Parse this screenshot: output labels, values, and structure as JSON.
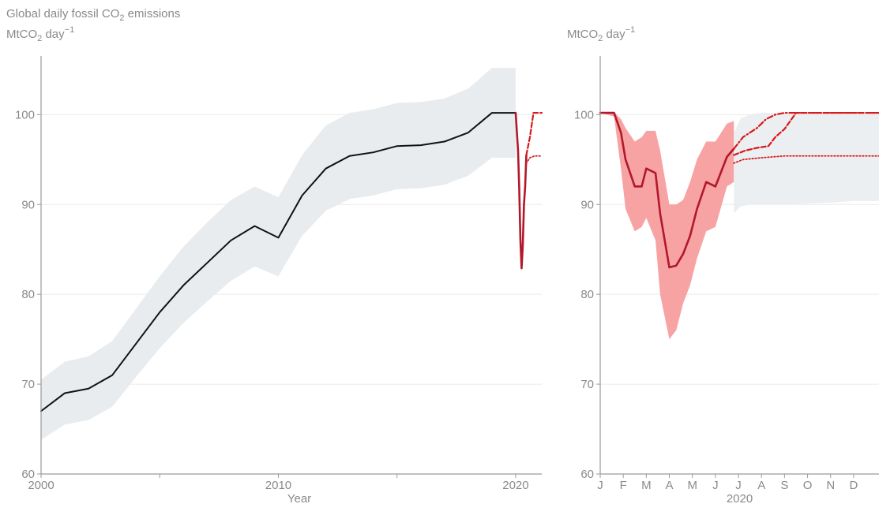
{
  "figure_title": {
    "main": "Global daily fossil CO",
    "sub": "2",
    "tail": " emissions"
  },
  "unit_label": {
    "a": "MtCO",
    "sub": "2",
    "b": " day",
    "sup": "−1"
  },
  "colors": {
    "grid": "#ebebeb",
    "axis": "#9a9a9a",
    "text": "#8a8a8a",
    "black_line": "#111111",
    "uncertainty_grey": "#e9ecee",
    "red_line": "#b2182b",
    "red_band": "#f7a3a3",
    "red_dash": "#d7191c"
  },
  "chart_data": [
    {
      "type": "line",
      "ylim": [
        60,
        106
      ],
      "xlim": [
        2000,
        2021.1
      ],
      "yticks": [
        60,
        70,
        80,
        90,
        100
      ],
      "xticks": [
        2000,
        2005,
        2010,
        2015,
        2020
      ],
      "xtick_labels": [
        "2000",
        "",
        "2010",
        "",
        "2020"
      ],
      "xlabel": "Year",
      "grid": true,
      "series": [
        {
          "style": "line",
          "x": [
            2000,
            2001,
            2002,
            2003,
            2004,
            2005,
            2006,
            2007,
            2008,
            2009,
            2010,
            2011,
            2012,
            2013,
            2014,
            2015,
            2016,
            2017,
            2018,
            2019,
            2020
          ],
          "y": [
            67.0,
            69.0,
            69.5,
            71.0,
            74.5,
            78.0,
            81.0,
            83.5,
            86.0,
            87.6,
            86.3,
            91.0,
            94.0,
            95.4,
            95.8,
            96.5,
            96.6,
            97.0,
            98.0,
            100.2,
            100.2
          ],
          "band_low": [
            63.8,
            65.5,
            66.0,
            67.5,
            70.8,
            74.0,
            76.8,
            79.2,
            81.5,
            83.1,
            82.0,
            86.5,
            89.3,
            90.6,
            91.0,
            91.7,
            91.8,
            92.2,
            93.2,
            95.2,
            95.2
          ],
          "band_high": [
            70.5,
            72.5,
            73.1,
            74.8,
            78.4,
            82.0,
            85.3,
            88.0,
            90.5,
            92.0,
            90.8,
            95.5,
            98.8,
            100.2,
            100.6,
            101.3,
            101.4,
            101.8,
            102.9,
            105.2,
            105.2
          ]
        },
        {
          "style": "red-line",
          "x": [
            2020.0,
            2020.1,
            2020.15,
            2020.2,
            2020.25,
            2020.3,
            2020.35,
            2020.4,
            2020.45
          ],
          "y": [
            100.2,
            96.0,
            91.8,
            86.0,
            82.9,
            85.5,
            90.0,
            92.0,
            95.5
          ]
        },
        {
          "style": "red-dash",
          "x": [
            2020.45,
            2020.6,
            2020.75,
            2020.9,
            2021.1
          ],
          "y": [
            95.5,
            97.5,
            100.2,
            100.2,
            100.2
          ]
        },
        {
          "style": "red-dot",
          "x": [
            2020.45,
            2020.6,
            2020.8,
            2021.1
          ],
          "y": [
            94.6,
            95.2,
            95.4,
            95.4
          ]
        }
      ]
    },
    {
      "type": "line",
      "ylim": [
        60,
        106
      ],
      "xlim": [
        0,
        12.1
      ],
      "yticks": [
        60,
        70,
        80,
        90,
        100
      ],
      "xtick_labels": [
        "J",
        "F",
        "M",
        "A",
        "M",
        "J",
        "J",
        "A",
        "S",
        "O",
        "N",
        "D"
      ],
      "xlabel": "2020",
      "grid": true,
      "series": [
        {
          "style": "red-line",
          "x": [
            0,
            0.6,
            0.9,
            1.1,
            1.5,
            1.8,
            2.0,
            2.4,
            2.6,
            3.0,
            3.3,
            3.6,
            3.9,
            4.2,
            4.6,
            5.0,
            5.5,
            5.8
          ],
          "y": [
            100.2,
            100.2,
            98.0,
            95.0,
            92.0,
            92.0,
            94.0,
            93.5,
            89.0,
            83.0,
            83.2,
            84.5,
            86.5,
            89.5,
            92.5,
            92.0,
            95.3,
            96.2
          ],
          "band_low": [
            100.2,
            99.8,
            94.0,
            89.5,
            87.0,
            87.5,
            88.5,
            86.0,
            80.0,
            75.0,
            76.0,
            79.0,
            81.0,
            84.0,
            87.0,
            87.5,
            92.0,
            92.5
          ],
          "band_high": [
            100.2,
            100.3,
            99.5,
            98.5,
            97.0,
            97.5,
            98.2,
            98.2,
            96.0,
            90.0,
            90.0,
            90.5,
            92.5,
            95.0,
            97.0,
            97.0,
            99.0,
            99.3
          ]
        },
        {
          "style": "grey-band",
          "x": [
            5.8,
            6.1,
            6.5,
            7.0,
            7.6,
            8.2,
            9.0,
            10.0,
            11.0,
            12.1
          ],
          "band_low": [
            89.0,
            89.8,
            90.0,
            90.0,
            90.0,
            90.0,
            90.1,
            90.2,
            90.4,
            90.4
          ],
          "band_high": [
            98.0,
            99.6,
            100.0,
            100.2,
            100.2,
            100.2,
            100.2,
            100.2,
            100.2,
            100.2
          ]
        },
        {
          "style": "red-dashdot",
          "x": [
            5.8,
            6.2,
            6.8,
            7.2,
            7.6,
            8.0,
            8.5,
            9.0,
            12.1
          ],
          "y": [
            96.2,
            97.5,
            98.5,
            99.5,
            100.0,
            100.2,
            100.2,
            100.2,
            100.2
          ]
        },
        {
          "style": "red-dash",
          "x": [
            5.8,
            6.3,
            6.8,
            7.3,
            7.6,
            8.0,
            8.5,
            9.0,
            12.1
          ],
          "y": [
            95.5,
            96.0,
            96.3,
            96.5,
            97.5,
            98.4,
            100.2,
            100.2,
            100.2
          ]
        },
        {
          "style": "red-dot",
          "x": [
            5.8,
            6.2,
            7.0,
            8.0,
            9.0,
            12.1
          ],
          "y": [
            94.6,
            95.0,
            95.2,
            95.4,
            95.4,
            95.4
          ]
        }
      ]
    }
  ]
}
